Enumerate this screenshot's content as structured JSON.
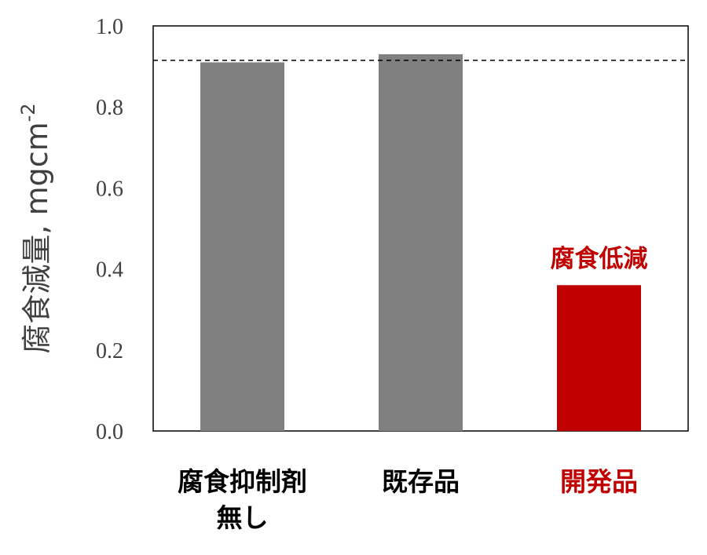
{
  "chart_data": {
    "type": "bar",
    "categories": [
      "腐食抑制剤\n無し",
      "既存品",
      "開発品"
    ],
    "values": [
      0.91,
      0.93,
      0.36
    ],
    "bar_colors": [
      "#808080",
      "#808080",
      "#c00000"
    ],
    "category_label_colors": [
      "#000000",
      "#000000",
      "#c00000"
    ],
    "ylabel": "腐食減量, mgcm",
    "ylabel_superscript": "-2",
    "ylim": [
      0.0,
      1.0
    ],
    "yticks": [
      "0.0",
      "0.2",
      "0.4",
      "0.6",
      "0.8",
      "1.0"
    ],
    "reference_line": 0.915,
    "annotation": {
      "text": "腐食低減",
      "category_index": 2,
      "color": "#c00000"
    },
    "grid": false
  }
}
